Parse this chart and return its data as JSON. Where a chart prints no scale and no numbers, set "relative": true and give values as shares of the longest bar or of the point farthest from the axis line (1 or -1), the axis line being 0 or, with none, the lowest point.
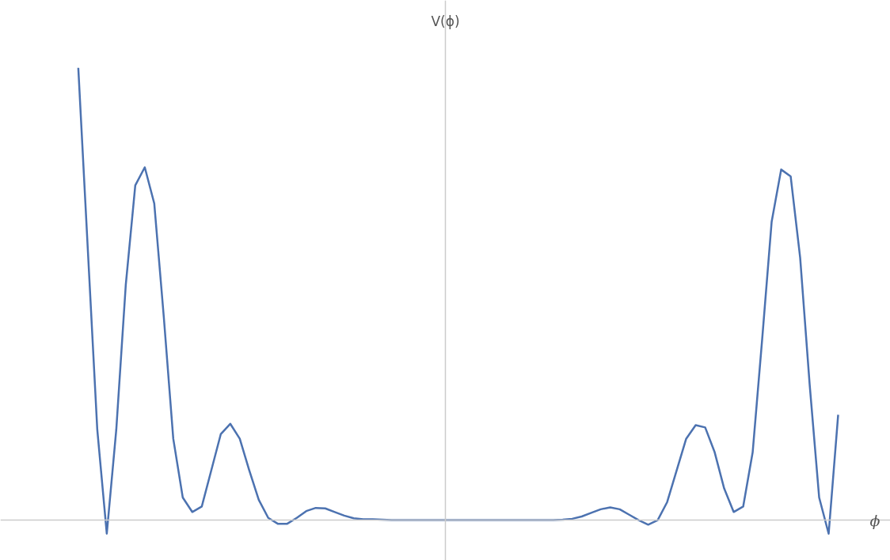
{
  "chart_data": {
    "type": "line",
    "relative": true,
    "xlabel": "ϕ",
    "ylabel": "V(ϕ)",
    "categories": [
      null,
      null,
      null,
      null,
      null,
      null,
      null,
      null,
      null,
      null,
      null,
      null,
      null,
      null,
      null,
      null,
      null,
      null,
      null,
      null,
      null,
      null,
      null,
      null,
      null,
      null,
      null,
      null,
      null,
      null,
      null,
      null,
      null,
      null,
      null,
      null,
      null,
      null,
      null,
      null,
      null,
      null,
      null,
      null,
      null,
      null,
      null,
      null,
      null,
      null,
      null,
      null,
      null,
      null,
      null,
      null,
      null,
      null,
      null,
      null,
      null,
      null,
      null,
      null,
      null,
      null,
      null,
      null,
      null,
      null,
      null,
      null,
      null,
      null,
      null,
      null,
      null,
      null,
      null,
      null,
      null
    ],
    "series": [
      {
        "color": "#4c72b0",
        "values": [
          1.0,
          0.6,
          0.2,
          -0.03,
          0.2,
          0.52,
          0.74,
          0.78,
          0.7,
          0.45,
          0.18,
          0.05,
          0.018,
          0.03,
          0.11,
          0.19,
          0.213,
          0.18,
          0.11,
          0.045,
          0.005,
          -0.008,
          -0.008,
          0.005,
          0.02,
          0.027,
          0.026,
          0.018,
          0.01,
          0.004,
          0.002,
          0.002,
          0.001,
          0,
          0,
          0,
          0,
          0,
          0,
          0,
          0,
          0,
          0,
          0,
          0,
          0,
          0,
          0,
          0,
          0,
          0,
          0.001,
          0.003,
          0.008,
          0.016,
          0.024,
          0.028,
          0.024,
          0.012,
          0,
          -0.01,
          0,
          0.04,
          0.11,
          0.18,
          0.21,
          0.205,
          0.15,
          0.07,
          0.018,
          0.03,
          0.15,
          0.4,
          0.66,
          0.775,
          0.76,
          0.58,
          0.3,
          0.05,
          -0.03,
          0.233
        ]
      }
    ]
  }
}
